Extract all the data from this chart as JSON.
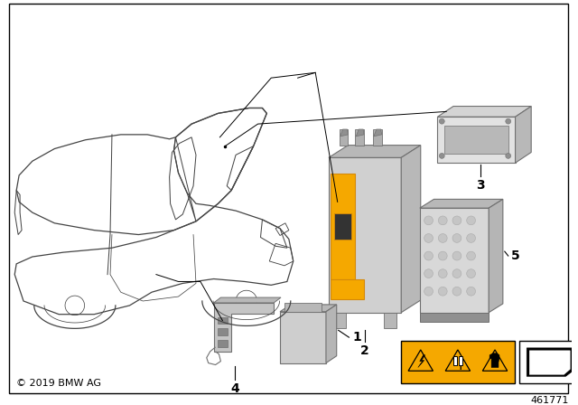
{
  "bg_color": "#ffffff",
  "border_color": "#000000",
  "copyright_text": "© 2019 BMW AG",
  "diagram_number": "461771",
  "gray_light": "#d4d4d4",
  "gray_mid": "#b8b8b8",
  "gray_dark": "#909090",
  "gray_edge": "#707070",
  "orange": "#f5a800",
  "orange_dark": "#d4890a"
}
